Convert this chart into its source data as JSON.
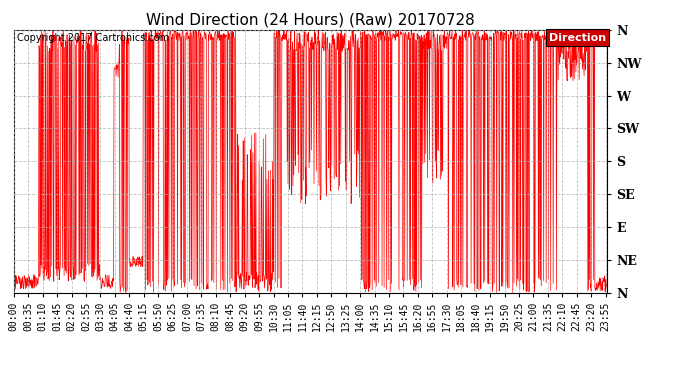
{
  "title": "Wind Direction (24 Hours) (Raw) 20170728",
  "copyright": "Copyright 2017 Cartronics.com",
  "legend_label": "Direction",
  "legend_bg": "#cc0000",
  "legend_text_color": "#ffffff",
  "line_color": "#ff0000",
  "background_color": "#ffffff",
  "grid_color": "#b0b0b0",
  "ytick_labels": [
    "N",
    "NE",
    "E",
    "SE",
    "S",
    "SW",
    "W",
    "NW",
    "N"
  ],
  "ytick_values": [
    0,
    45,
    90,
    135,
    180,
    225,
    270,
    315,
    360
  ],
  "ylim": [
    0,
    360
  ],
  "xlim_start": 0,
  "xlim_end": 1439,
  "x_labels": [
    "00:00",
    "00:35",
    "01:10",
    "01:45",
    "02:20",
    "02:55",
    "03:30",
    "04:05",
    "04:40",
    "05:15",
    "05:50",
    "06:25",
    "07:00",
    "07:35",
    "08:10",
    "08:45",
    "09:20",
    "09:55",
    "10:30",
    "11:05",
    "11:40",
    "12:15",
    "12:50",
    "13:25",
    "14:00",
    "14:35",
    "15:10",
    "15:45",
    "16:20",
    "16:55",
    "17:30",
    "18:05",
    "18:40",
    "19:15",
    "19:50",
    "20:25",
    "21:00",
    "21:35",
    "22:10",
    "22:45",
    "23:20",
    "23:55"
  ],
  "title_fontsize": 11,
  "copyright_fontsize": 7,
  "tick_fontsize": 7,
  "figsize": [
    6.9,
    3.75
  ],
  "dpi": 100
}
